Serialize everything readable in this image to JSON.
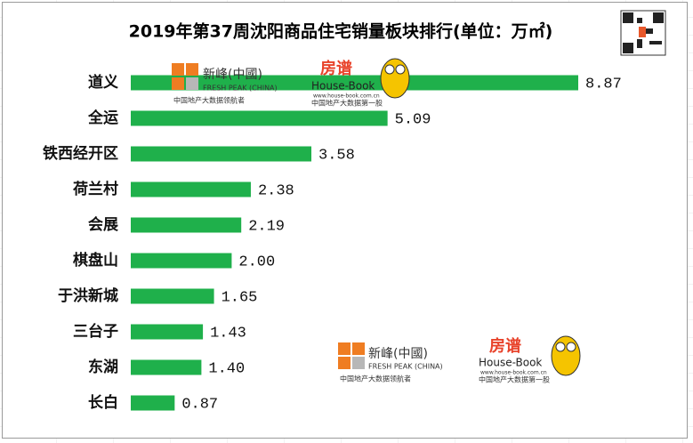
{
  "chart_data": {
    "type": "bar",
    "orientation": "horizontal",
    "title": "2019年第37周沈阳商品住宅销量板块排行(单位：万㎡)",
    "categories": [
      "道义",
      "全运",
      "铁西经开区",
      "荷兰村",
      "会展",
      "棋盘山",
      "于洪新城",
      "三台子",
      "东湖",
      "长白"
    ],
    "values": [
      8.87,
      5.09,
      3.58,
      2.38,
      2.19,
      2.0,
      1.65,
      1.43,
      1.4,
      0.87
    ],
    "value_labels": [
      "8.87",
      "5.09",
      "3.58",
      "2.38",
      "2.19",
      "2.00",
      "1.65",
      "1.43",
      "1.40",
      "0.87"
    ],
    "color": "#1fb04b"
  },
  "logos": {
    "freshpeak_name": "新峰(中國)",
    "freshpeak_en": "FRESH PEAK (CHINA)",
    "freshpeak_slogan": "中国地产大数据领航者",
    "housebook_cn": "房谱",
    "housebook_name": "House-Book",
    "housebook_url": "www.house-book.com.cn",
    "housebook_slogan": "中国地产大数据第一股"
  }
}
